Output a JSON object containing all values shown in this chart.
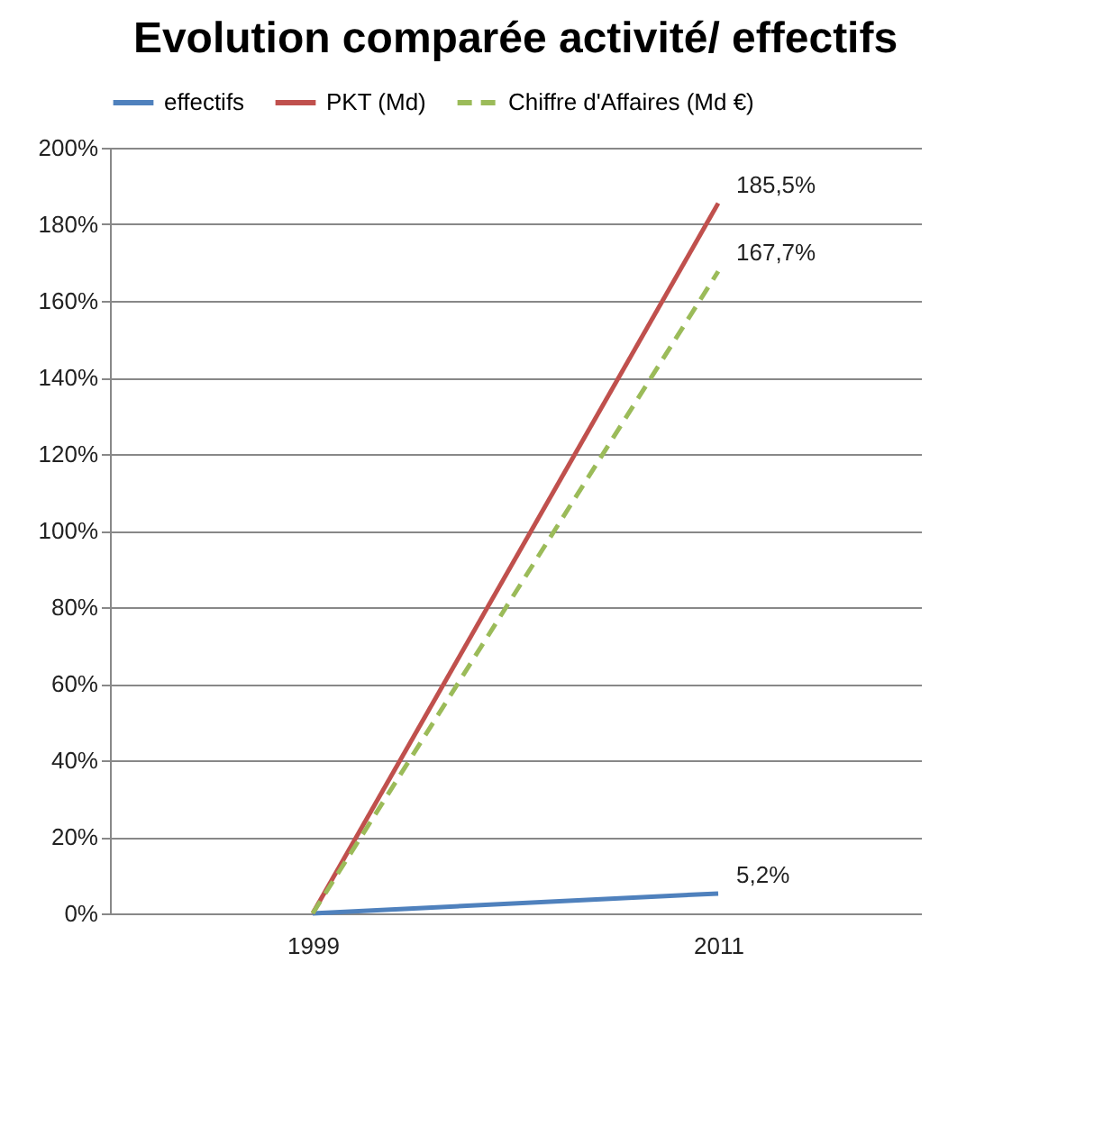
{
  "chart_data": {
    "type": "line",
    "title": "Evolution comparée activité/ effectifs",
    "categories": [
      "1999",
      "2011"
    ],
    "series": [
      {
        "name": "effectifs",
        "color": "#4f81bd",
        "values": [
          0,
          5.2
        ],
        "value_labels": [
          null,
          "5,2%"
        ],
        "line_style": "solid"
      },
      {
        "name": "PKT (Md)",
        "color": "#c0504d",
        "values": [
          0,
          185.5
        ],
        "value_labels": [
          null,
          "185,5%"
        ],
        "line_style": "solid"
      },
      {
        "name": "Chiffre d'Affaires (Md €)",
        "color": "#9bbb59",
        "values": [
          0,
          167.7
        ],
        "value_labels": [
          null,
          "167,7%"
        ],
        "line_style": "dashed"
      }
    ],
    "ylim": [
      0,
      200
    ],
    "yticks": [
      {
        "value": 0,
        "label": "0%"
      },
      {
        "value": 20,
        "label": "20%"
      },
      {
        "value": 40,
        "label": "40%"
      },
      {
        "value": 60,
        "label": "60%"
      },
      {
        "value": 80,
        "label": "80%"
      },
      {
        "value": 100,
        "label": "100%"
      },
      {
        "value": 120,
        "label": "120%"
      },
      {
        "value": 140,
        "label": "140%"
      },
      {
        "value": 160,
        "label": "160%"
      },
      {
        "value": 180,
        "label": "180%"
      },
      {
        "value": 200,
        "label": "200%"
      }
    ],
    "grid": "y",
    "legend": "top",
    "marker": "none"
  }
}
